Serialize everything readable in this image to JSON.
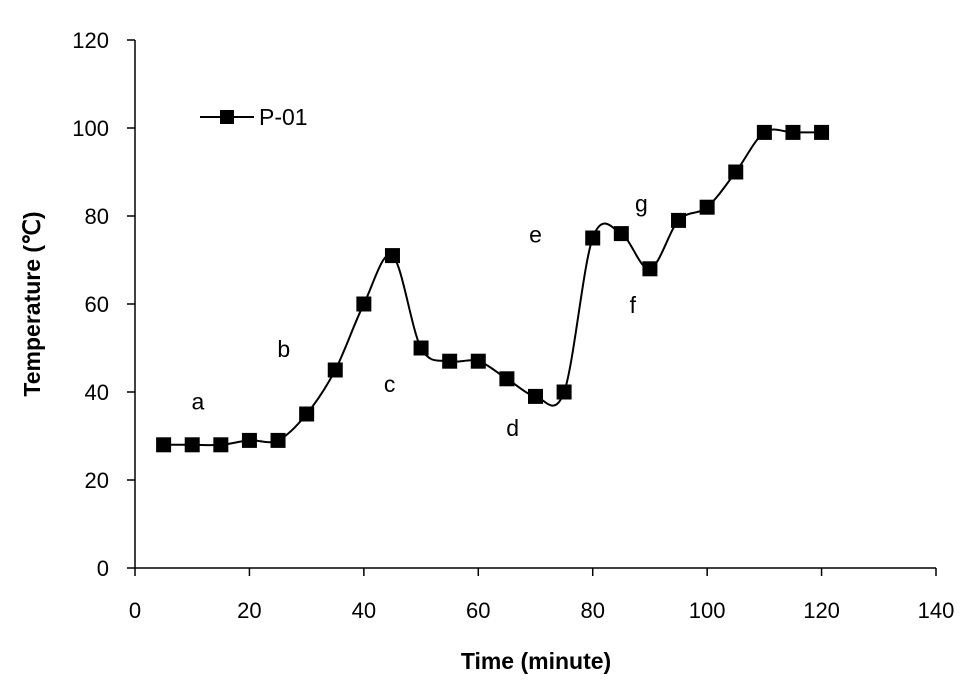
{
  "chart_data": {
    "type": "line",
    "xlabel": "Time (minute)",
    "ylabel": "Temperature (℃)",
    "xlim": [
      0,
      140
    ],
    "ylim": [
      0,
      120
    ],
    "xticks": [
      0,
      20,
      40,
      60,
      80,
      100,
      120,
      140
    ],
    "yticks": [
      0,
      20,
      40,
      60,
      80,
      100,
      120
    ],
    "grid": false,
    "legend_position": "top-left",
    "series": [
      {
        "name": "P-01",
        "color": "#000000",
        "marker": "square",
        "x": [
          5,
          10,
          15,
          20,
          25,
          30,
          35,
          40,
          45,
          50,
          55,
          60,
          65,
          70,
          75,
          80,
          85,
          90,
          95,
          100,
          105,
          110,
          115,
          120
        ],
        "y": [
          28,
          28,
          28,
          29,
          29,
          35,
          45,
          60,
          71,
          50,
          47,
          47,
          43,
          39,
          40,
          75,
          76,
          68,
          79,
          82,
          90,
          99,
          99,
          99
        ]
      }
    ],
    "annotations": [
      {
        "text": "a",
        "x": 11,
        "y": 36
      },
      {
        "text": "b",
        "x": 26,
        "y": 48
      },
      {
        "text": "c",
        "x": 44.5,
        "y": 40
      },
      {
        "text": "d",
        "x": 66,
        "y": 30
      },
      {
        "text": "e",
        "x": 70,
        "y": 74
      },
      {
        "text": "f",
        "x": 87,
        "y": 58
      },
      {
        "text": "g",
        "x": 88.5,
        "y": 81
      }
    ]
  }
}
